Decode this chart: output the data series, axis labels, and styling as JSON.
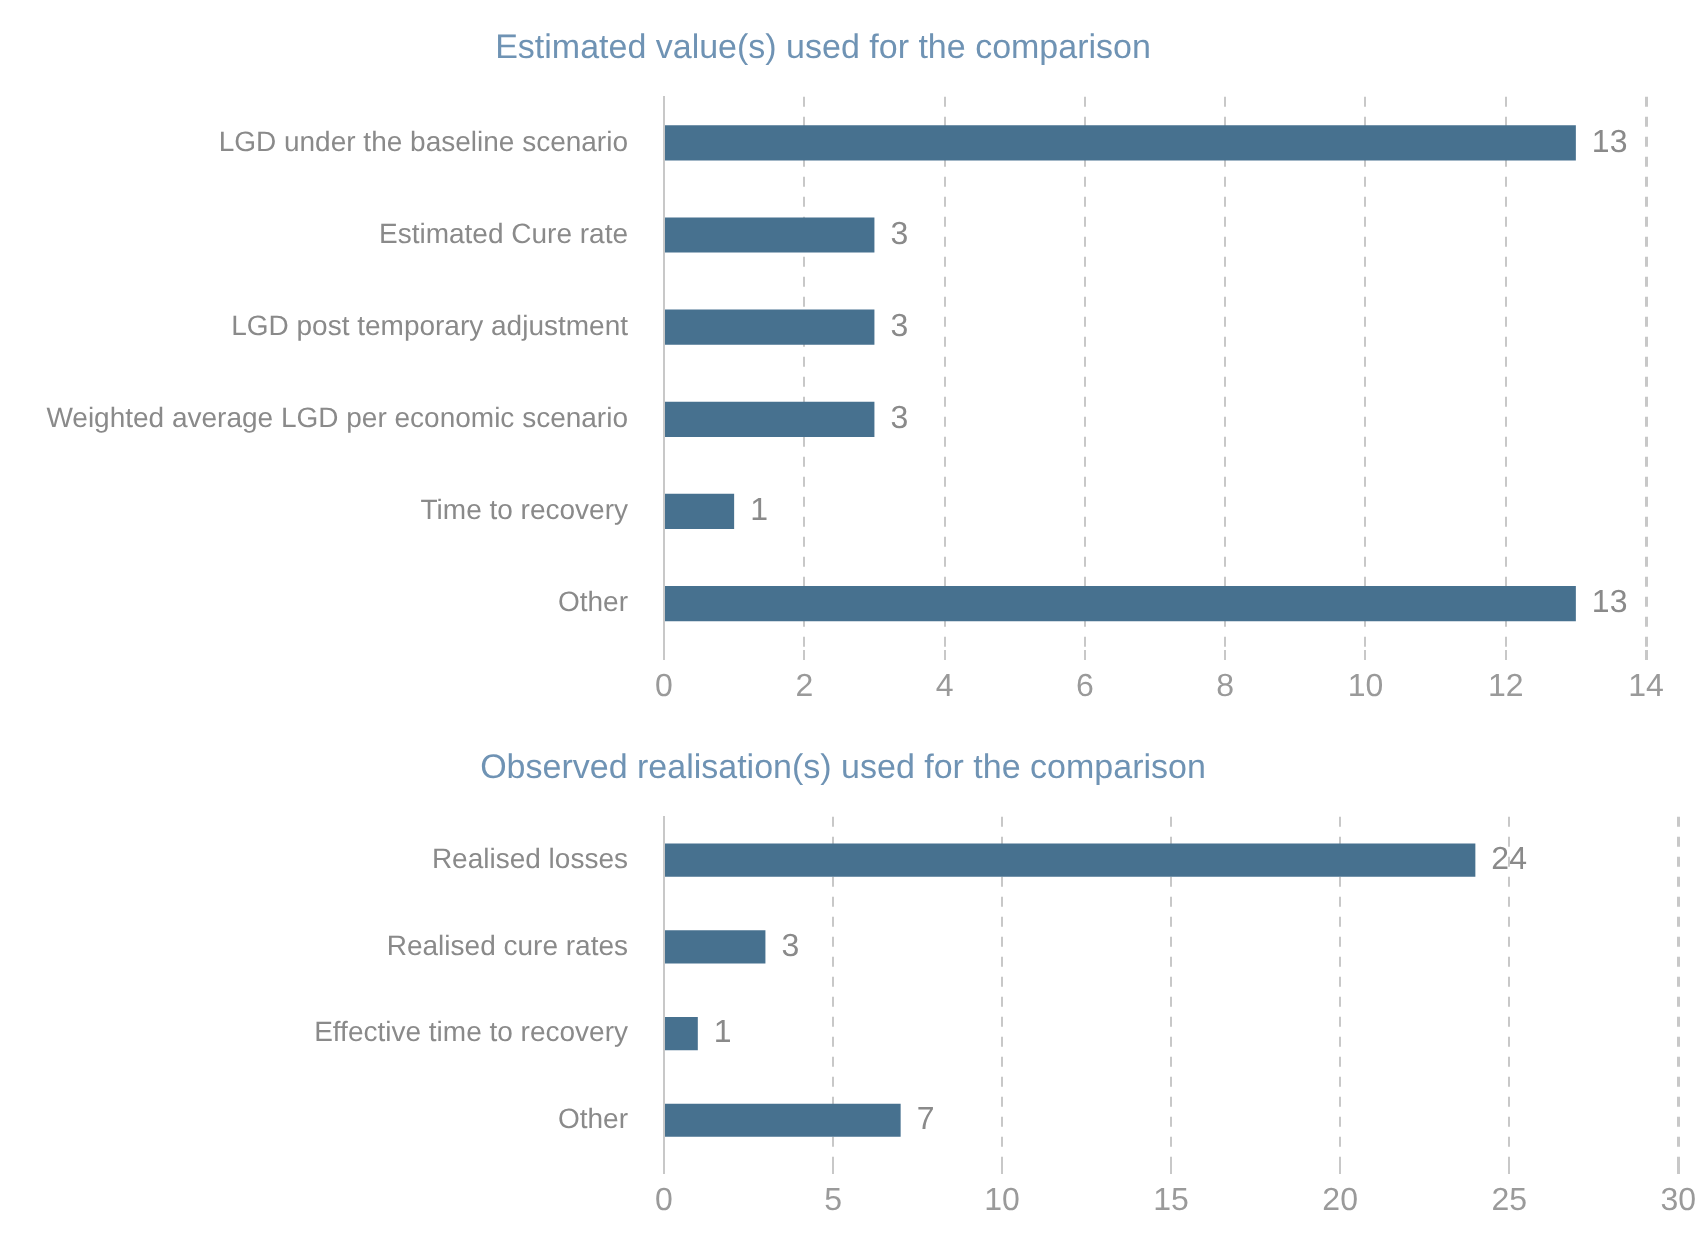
{
  "chart_data": [
    {
      "type": "bar",
      "orientation": "horizontal",
      "title": "Estimated value(s) used for the comparison",
      "categories": [
        "LGD under the baseline scenario",
        "Estimated Cure rate",
        "LGD post temporary adjustment",
        "Weighted average LGD per economic scenario",
        "Time to recovery",
        "Other"
      ],
      "values": [
        13,
        3,
        3,
        3,
        1,
        13
      ],
      "color": "#47718f",
      "xlim": [
        0,
        14
      ],
      "xticks": [
        0,
        2,
        4,
        6,
        8,
        10,
        12,
        14
      ],
      "grid": "x",
      "data_labels": true
    },
    {
      "type": "bar",
      "orientation": "horizontal",
      "title": "Observed realisation(s) used for the comparison",
      "categories": [
        "Realised losses",
        "Realised cure rates",
        "Effective time to recovery",
        "Other"
      ],
      "values": [
        24,
        3,
        1,
        7
      ],
      "color": "#47718f",
      "xlim": [
        0,
        30
      ],
      "xticks": [
        0,
        5,
        10,
        15,
        20,
        25,
        30
      ],
      "grid": "x",
      "data_labels": true
    }
  ]
}
